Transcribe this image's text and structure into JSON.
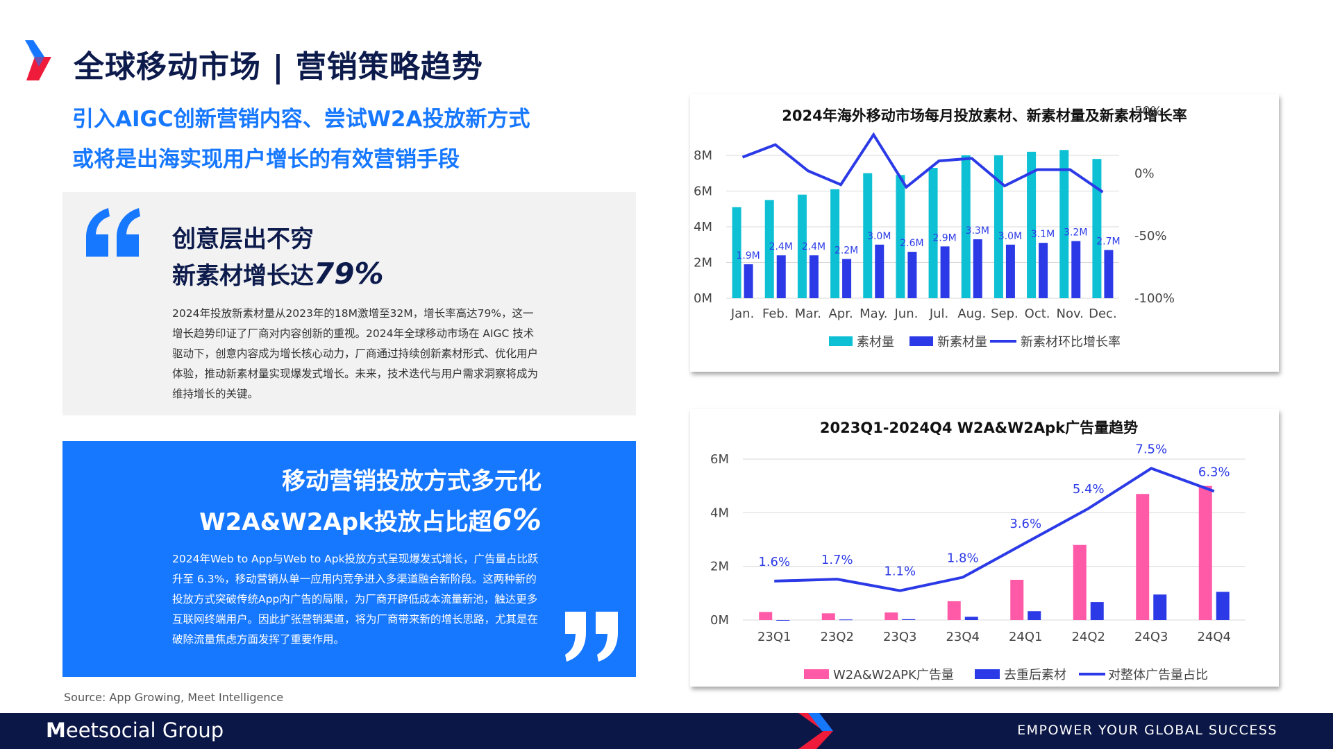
{
  "header": {
    "title": "全球移动市场 | 营销策略趋势",
    "subtitle_line1": "引入AIGC创新营销内容、尝试W2A投放新方式",
    "subtitle_line2": "或将是出海实现用户增长的有效营销手段"
  },
  "card_gray": {
    "heading_line1": "创意层出不穷",
    "heading_line2_prefix": "新素材增长达",
    "heading_line2_number": "79%",
    "body": "2024年投放新素材量从2023年的18M激增至32M，增长率高达79%，这一增长趋势印证了厂商对内容创新的重视。2024年全球移动市场在 AIGC 技术驱动下，创意内容成为增长核心动力，厂商通过持续创新素材形式、优化用户体验，推动新素材量实现爆发式增长。未来，技术迭代与用户需求洞察将成为维持增长的关键。"
  },
  "card_blue": {
    "heading_line1": "移动营销投放方式多元化",
    "heading_line2_prefix": "W2A&W2Apk投放占比超",
    "heading_line2_number": "6%",
    "body": "2024年Web to App与Web to Apk投放方式呈现爆发式增长，广告量占比跃升至 6.3%，移动营销从单一应用内竞争进入多渠道融合新阶段。这两种新的投放方式突破传统App内广告的局限，为厂商开辟低成本流量新池，触达更多互联网终端用户。因此扩张营销渠道，将为厂商带来新的增长思路，尤其是在破除流量焦虑方面发挥了重要作用。"
  },
  "source": "Source:  App Growing, Meet Intelligence",
  "footer": {
    "brand_mark": "M",
    "brand_rest": "eetsocial Group",
    "slogan": "EMPOWER YOUR GLOBAL SUCCESS"
  },
  "colors": {
    "brand_blue": "#1677ff",
    "navy": "#0b1746",
    "teal": "#0ec0d4",
    "royal": "#2b3ae6",
    "pink": "#ff5aa8",
    "red": "#ee1c3a"
  },
  "chart_data": [
    {
      "type": "bar",
      "title": "2024年海外移动市场每月投放素材、新素材量及新素材增长率",
      "categories": [
        "Jan.",
        "Feb.",
        "Mar.",
        "Apr.",
        "May.",
        "Jun.",
        "Jul.",
        "Aug.",
        "Sep.",
        "Oct.",
        "Nov.",
        "Dec."
      ],
      "y_ticks": [
        "0M",
        "2M",
        "4M",
        "6M",
        "8M"
      ],
      "ylim": [
        0,
        8
      ],
      "y2_ticks": [
        "-100%",
        "-50%",
        "0%",
        "50%"
      ],
      "y2lim": [
        -100,
        50
      ],
      "grid": true,
      "legend_position": "bottom",
      "series": [
        {
          "name": "素材量",
          "kind": "bar",
          "color": "#0ec0d4",
          "values": [
            5.1,
            5.5,
            5.8,
            6.1,
            7.0,
            6.9,
            7.3,
            8.0,
            8.0,
            8.2,
            8.3,
            7.8
          ]
        },
        {
          "name": "新素材量",
          "kind": "bar",
          "color": "#2b3ae6",
          "values": [
            1.9,
            2.4,
            2.4,
            2.2,
            3.0,
            2.6,
            2.9,
            3.3,
            3.0,
            3.1,
            3.2,
            2.7
          ],
          "labels": [
            "1.9M",
            "2.4M",
            "2.4M",
            "2.2M",
            "3.0M",
            "2.6M",
            "2.9M",
            "3.3M",
            "3.0M",
            "3.1M",
            "3.2M",
            "2.7M"
          ]
        },
        {
          "name": "新素材环比增长率",
          "kind": "line",
          "axis": "right",
          "color": "#2b3ae6",
          "values": [
            13,
            23,
            2,
            -9,
            31,
            -11,
            10,
            12,
            -10,
            3,
            3,
            -15
          ]
        }
      ]
    },
    {
      "type": "bar",
      "title": "2023Q1-2024Q4 W2A&W2Apk广告量趋势",
      "categories": [
        "23Q1",
        "23Q2",
        "23Q3",
        "23Q4",
        "24Q1",
        "24Q2",
        "24Q3",
        "24Q4"
      ],
      "y_ticks": [
        "0M",
        "2M",
        "4M",
        "6M"
      ],
      "ylim": [
        0,
        6
      ],
      "grid": true,
      "legend_position": "bottom",
      "series": [
        {
          "name": "W2A&W2APK广告量",
          "kind": "bar",
          "color": "#ff5aa8",
          "values": [
            0.3,
            0.25,
            0.28,
            0.7,
            1.5,
            2.8,
            4.7,
            5.0
          ]
        },
        {
          "name": "去重后素材",
          "kind": "bar",
          "color": "#2b3ae6",
          "values": [
            0.0,
            0.02,
            0.03,
            0.12,
            0.33,
            0.67,
            0.95,
            1.05
          ]
        },
        {
          "name": "对整体广告量占比",
          "kind": "line",
          "color": "#2b3ae6",
          "values": [
            1.6,
            1.7,
            1.1,
            1.8,
            3.6,
            5.4,
            7.5,
            6.3
          ],
          "labels": [
            "1.6%",
            "1.7%",
            "1.1%",
            "1.8%",
            "3.6%",
            "5.4%",
            "7.5%",
            "6.3%"
          ]
        }
      ]
    }
  ]
}
